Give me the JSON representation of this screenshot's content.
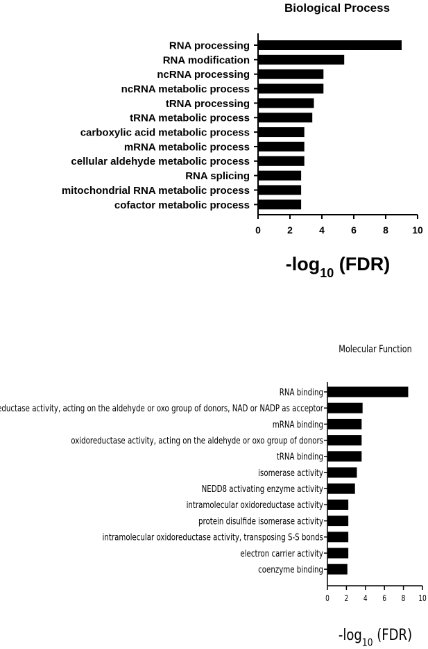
{
  "chart_data": [
    {
      "type": "bar",
      "orientation": "horizontal",
      "title": "Biological Process",
      "xlabel_prefix": "-log",
      "xlabel_sub": "10",
      "xlabel_suffix": " (FDR)",
      "ylabel": "",
      "xlim": [
        0,
        10
      ],
      "xticks": [
        "0",
        "2",
        "4",
        "6",
        "8",
        "10"
      ],
      "categories": [
        "RNA processing",
        "RNA modification",
        "ncRNA processing",
        "ncRNA metabolic process",
        "tRNA processing",
        "tRNA metabolic process",
        "carboxylic acid metabolic process",
        "mRNA metabolic process",
        "cellular aldehyde metabolic process",
        "RNA splicing",
        "mitochondrial RNA metabolic process",
        "cofactor metabolic process"
      ],
      "values": [
        9.0,
        5.4,
        4.1,
        4.1,
        3.5,
        3.4,
        2.9,
        2.9,
        2.9,
        2.7,
        2.7,
        2.7
      ],
      "bar_color": "#000000",
      "grid": false,
      "legend": "none"
    },
    {
      "type": "bar",
      "orientation": "horizontal",
      "title": "Molecular Function",
      "xlabel_prefix": "-log",
      "xlabel_sub": "10",
      "xlabel_suffix": " (FDR)",
      "ylabel": "",
      "xlim": [
        0,
        10
      ],
      "xticks": [
        "0",
        "2",
        "4",
        "6",
        "8",
        "10"
      ],
      "categories": [
        "RNA binding",
        "oxidoreductase activity, acting on the aldehyde or oxo group of donors, NAD or NADP as acceptor",
        "mRNA binding",
        "oxidoreductase activity, acting on the aldehyde or oxo group of donors",
        "tRNA binding",
        "isomerase activity",
        "NEDD8 activating enzyme activity",
        "intramolecular oxidoreductase activity",
        "protein disulfide isomerase activity",
        "intramolecular oxidoreductase activity, transposing S-S bonds",
        "electron carrier activity",
        "coenzyme binding"
      ],
      "values": [
        8.5,
        3.7,
        3.6,
        3.6,
        3.6,
        3.1,
        2.9,
        2.2,
        2.2,
        2.2,
        2.2,
        2.1
      ],
      "bar_color": "#000000",
      "grid": false,
      "legend": "none"
    }
  ]
}
